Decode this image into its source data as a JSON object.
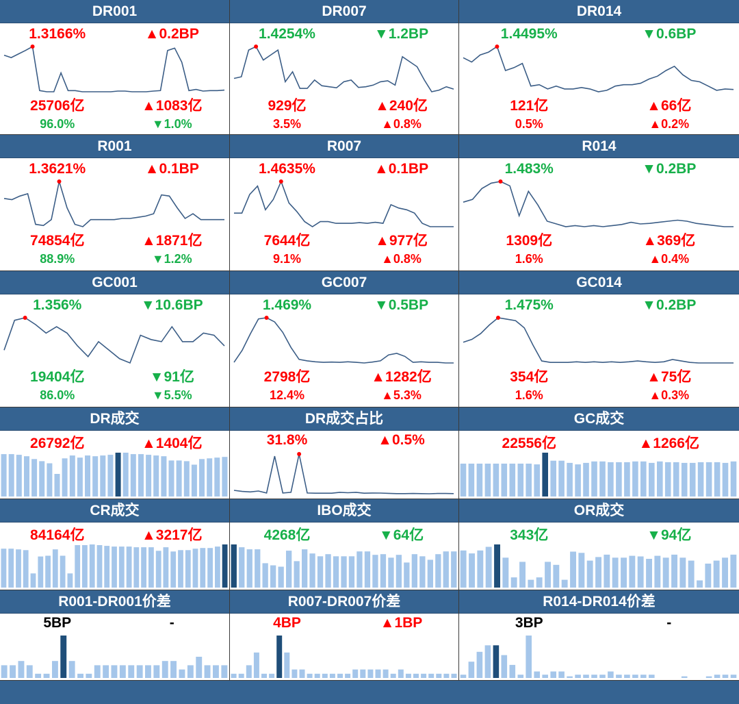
{
  "colors": {
    "header_bg": "#356391",
    "up": "#ff0000",
    "down": "#17b04a",
    "line": "#3b5d86",
    "bar": "#a5c6ea",
    "bar_hi": "#1f4e79"
  },
  "rows": [
    {
      "type": "line",
      "cells": [
        {
          "title": "DR001",
          "rate": "1.3166%",
          "rate_color": "red",
          "rate_chg": "▲0.2BP",
          "rate_chg_color": "red",
          "vol": "25706亿",
          "vol_color": "red",
          "vol_chg": "▲1083亿",
          "vol_chg_color": "red",
          "share": "96.0%",
          "share_color": "green",
          "share_chg": "▼1.0%",
          "share_chg_color": "green"
        },
        {
          "title": "DR007",
          "rate": "1.4254%",
          "rate_color": "green",
          "rate_chg": "▼1.2BP",
          "rate_chg_color": "green",
          "vol": "929亿",
          "vol_color": "red",
          "vol_chg": "▲240亿",
          "vol_chg_color": "red",
          "share": "3.5%",
          "share_color": "red",
          "share_chg": "▲0.8%",
          "share_chg_color": "red"
        },
        {
          "title": "DR014",
          "rate": "1.4495%",
          "rate_color": "green",
          "rate_chg": "▼0.6BP",
          "rate_chg_color": "green",
          "vol": "121亿",
          "vol_color": "red",
          "vol_chg": "▲66亿",
          "vol_chg_color": "red",
          "share": "0.5%",
          "share_color": "red",
          "share_chg": "▲0.2%",
          "share_chg_color": "red"
        }
      ]
    },
    {
      "type": "line",
      "cells": [
        {
          "title": "R001",
          "rate": "1.3621%",
          "rate_color": "red",
          "rate_chg": "▲0.1BP",
          "rate_chg_color": "red",
          "vol": "74854亿",
          "vol_color": "red",
          "vol_chg": "▲1871亿",
          "vol_chg_color": "red",
          "share": "88.9%",
          "share_color": "green",
          "share_chg": "▼1.2%",
          "share_chg_color": "green"
        },
        {
          "title": "R007",
          "rate": "1.4635%",
          "rate_color": "red",
          "rate_chg": "▲0.1BP",
          "rate_chg_color": "red",
          "vol": "7644亿",
          "vol_color": "red",
          "vol_chg": "▲977亿",
          "vol_chg_color": "red",
          "share": "9.1%",
          "share_color": "red",
          "share_chg": "▲0.8%",
          "share_chg_color": "red"
        },
        {
          "title": "R014",
          "rate": "1.483%",
          "rate_color": "green",
          "rate_chg": "▼0.2BP",
          "rate_chg_color": "green",
          "vol": "1309亿",
          "vol_color": "red",
          "vol_chg": "▲369亿",
          "vol_chg_color": "red",
          "share": "1.6%",
          "share_color": "red",
          "share_chg": "▲0.4%",
          "share_chg_color": "red"
        }
      ]
    },
    {
      "type": "line",
      "cells": [
        {
          "title": "GC001",
          "rate": "1.356%",
          "rate_color": "green",
          "rate_chg": "▼10.6BP",
          "rate_chg_color": "green",
          "vol": "19404亿",
          "vol_color": "green",
          "vol_chg": "▼91亿",
          "vol_chg_color": "green",
          "share": "86.0%",
          "share_color": "green",
          "share_chg": "▼5.5%",
          "share_chg_color": "green"
        },
        {
          "title": "GC007",
          "rate": "1.469%",
          "rate_color": "green",
          "rate_chg": "▼0.5BP",
          "rate_chg_color": "green",
          "vol": "2798亿",
          "vol_color": "red",
          "vol_chg": "▲1282亿",
          "vol_chg_color": "red",
          "share": "12.4%",
          "share_color": "red",
          "share_chg": "▲5.3%",
          "share_chg_color": "red"
        },
        {
          "title": "GC014",
          "rate": "1.475%",
          "rate_color": "green",
          "rate_chg": "▼0.2BP",
          "rate_chg_color": "green",
          "vol": "354亿",
          "vol_color": "red",
          "vol_chg": "▲75亿",
          "vol_chg_color": "red",
          "share": "1.6%",
          "share_color": "red",
          "share_chg": "▲0.3%",
          "share_chg_color": "red"
        }
      ]
    },
    {
      "type": "mixed",
      "cells": [
        {
          "title": "DR成交",
          "kind": "bar",
          "v1": "26792亿",
          "v1_color": "red",
          "v2": "▲1404亿",
          "v2_color": "red"
        },
        {
          "title": "DR成交占比",
          "kind": "line",
          "v1": "31.8%",
          "v1_color": "red",
          "v2": "▲0.5%",
          "v2_color": "red"
        },
        {
          "title": "GC成交",
          "kind": "bar",
          "v1": "22556亿",
          "v1_color": "red",
          "v2": "▲1266亿",
          "v2_color": "red"
        }
      ]
    },
    {
      "type": "mixed",
      "cells": [
        {
          "title": "CR成交",
          "kind": "bar",
          "v1": "84164亿",
          "v1_color": "red",
          "v2": "▲3217亿",
          "v2_color": "red"
        },
        {
          "title": "IBO成交",
          "kind": "bar",
          "v1": "4268亿",
          "v1_color": "green",
          "v2": "▼64亿",
          "v2_color": "green"
        },
        {
          "title": "OR成交",
          "kind": "bar",
          "v1": "343亿",
          "v1_color": "green",
          "v2": "▼94亿",
          "v2_color": "green"
        }
      ]
    },
    {
      "type": "mixed",
      "cells": [
        {
          "title": "R001-DR001价差",
          "kind": "bar",
          "v1": "5BP",
          "v1_color": "black",
          "v2": "-",
          "v2_color": "black"
        },
        {
          "title": "R007-DR007价差",
          "kind": "bar",
          "v1": "4BP",
          "v1_color": "red",
          "v2": "▲1BP",
          "v2_color": "red"
        },
        {
          "title": "R014-DR014价差",
          "kind": "bar",
          "v1": "3BP",
          "v1_color": "black",
          "v2": "-",
          "v2_color": "black"
        }
      ]
    }
  ],
  "chart_data": [
    {
      "type": "line",
      "title": "DR001",
      "values": [
        1.28,
        1.27,
        1.285,
        1.3,
        1.3166,
        1.13,
        1.125,
        1.125,
        1.205,
        1.13,
        1.13,
        1.125,
        1.125,
        1.125,
        1.125,
        1.125,
        1.128,
        1.128,
        1.125,
        1.125,
        1.125,
        1.128,
        1.13,
        1.3,
        1.31,
        1.25,
        1.13,
        1.135,
        1.128,
        1.13,
        1.13,
        1.132
      ],
      "highlight_index": 4
    },
    {
      "type": "line",
      "title": "DR007",
      "values": [
        1.33,
        1.335,
        1.415,
        1.4254,
        1.385,
        1.4,
        1.415,
        1.32,
        1.35,
        1.3,
        1.3,
        1.325,
        1.308,
        1.305,
        1.302,
        1.32,
        1.325,
        1.303,
        1.305,
        1.31,
        1.32,
        1.323,
        1.31,
        1.395,
        1.38,
        1.365,
        1.325,
        1.29,
        1.295,
        1.305,
        1.298
      ],
      "highlight_index": 3
    },
    {
      "type": "line",
      "title": "DR014",
      "values": [
        1.41,
        1.395,
        1.42,
        1.43,
        1.4495,
        1.365,
        1.375,
        1.39,
        1.31,
        1.315,
        1.3,
        1.31,
        1.3,
        1.3,
        1.305,
        1.3,
        1.29,
        1.295,
        1.31,
        1.315,
        1.315,
        1.32,
        1.335,
        1.345,
        1.365,
        1.38,
        1.35,
        1.33,
        1.325,
        1.31,
        1.295,
        1.3,
        1.298
      ],
      "highlight_index": 4
    },
    {
      "type": "line",
      "title": "R001",
      "values": [
        1.29,
        1.285,
        1.3,
        1.31,
        1.18,
        1.175,
        1.2,
        1.3621,
        1.25,
        1.18,
        1.17,
        1.2,
        1.2,
        1.2,
        1.2,
        1.205,
        1.205,
        1.21,
        1.215,
        1.225,
        1.305,
        1.3,
        1.25,
        1.205,
        1.225,
        1.2,
        1.2,
        1.2,
        1.2
      ],
      "highlight_index": 7
    },
    {
      "type": "line",
      "title": "R007",
      "values": [
        1.37,
        1.37,
        1.425,
        1.45,
        1.38,
        1.41,
        1.4635,
        1.4,
        1.375,
        1.345,
        1.33,
        1.345,
        1.345,
        1.34,
        1.34,
        1.34,
        1.342,
        1.34,
        1.343,
        1.34,
        1.395,
        1.385,
        1.38,
        1.37,
        1.34,
        1.33,
        1.33,
        1.33,
        1.33
      ],
      "highlight_index": 6
    },
    {
      "type": "line",
      "title": "R014",
      "values": [
        1.445,
        1.45,
        1.47,
        1.48,
        1.483,
        1.475,
        1.42,
        1.465,
        1.44,
        1.41,
        1.405,
        1.4,
        1.402,
        1.4,
        1.402,
        1.4,
        1.402,
        1.404,
        1.408,
        1.405,
        1.406,
        1.408,
        1.41,
        1.412,
        1.41,
        1.406,
        1.404,
        1.402,
        1.4,
        1.4
      ],
      "highlight_index": 4
    },
    {
      "type": "line",
      "title": "GC001",
      "values": [
        1.28,
        1.35,
        1.356,
        1.34,
        1.32,
        1.335,
        1.32,
        1.29,
        1.265,
        1.3,
        1.28,
        1.26,
        1.25,
        1.315,
        1.305,
        1.3,
        1.335,
        1.3,
        1.3,
        1.32,
        1.315,
        1.29
      ],
      "highlight_index": 2
    },
    {
      "type": "line",
      "title": "GC007",
      "values": [
        1.32,
        1.36,
        1.415,
        1.465,
        1.469,
        1.455,
        1.42,
        1.37,
        1.33,
        1.325,
        1.322,
        1.32,
        1.321,
        1.32,
        1.322,
        1.32,
        1.318,
        1.321,
        1.325,
        1.345,
        1.35,
        1.34,
        1.32,
        1.322,
        1.32,
        1.32,
        1.318,
        1.318
      ],
      "highlight_index": 4
    },
    {
      "type": "line",
      "title": "GC014",
      "values": [
        1.39,
        1.4,
        1.42,
        1.45,
        1.475,
        1.47,
        1.465,
        1.44,
        1.38,
        1.325,
        1.32,
        1.32,
        1.32,
        1.322,
        1.32,
        1.322,
        1.32,
        1.322,
        1.32,
        1.322,
        1.325,
        1.322,
        1.32,
        1.322,
        1.33,
        1.325,
        1.32,
        1.318,
        1.318,
        1.318,
        1.318,
        1.318
      ],
      "highlight_index": 4
    },
    {
      "type": "bar",
      "title": "DR成交",
      "values": [
        60,
        60,
        59,
        57,
        53,
        50,
        47,
        32,
        54,
        58,
        55,
        58,
        57,
        58,
        59,
        62,
        62,
        60,
        60,
        59,
        58,
        57,
        51,
        51,
        50,
        45,
        53,
        54,
        55,
        56
      ],
      "highlight_index": 15
    },
    {
      "type": "line",
      "title": "DR成交占比",
      "values": [
        4.0,
        3.2,
        2.8,
        3.5,
        2.0,
        30.2,
        2.0,
        2.5,
        31.8,
        2.0,
        1.8,
        1.8,
        1.8,
        2.5,
        2.2,
        2.5,
        1.8,
        2.0,
        1.9,
        1.7,
        1.5,
        1.5,
        1.6,
        1.5,
        1.4,
        1.6,
        1.6,
        1.5
      ],
      "highlight_index": 8
    },
    {
      "type": "bar",
      "title": "GC成交",
      "values": [
        45,
        45,
        45,
        45,
        45,
        45,
        45,
        45,
        45,
        44,
        60,
        49,
        49,
        46,
        44,
        46,
        48,
        48,
        47,
        47,
        47,
        48,
        48,
        46,
        48,
        47,
        47,
        46,
        46,
        47,
        47,
        47,
        46,
        48
      ],
      "highlight_index": 10
    },
    {
      "type": "bar",
      "title": "CR成交",
      "values": [
        55,
        55,
        54,
        53,
        20,
        44,
        45,
        54,
        45,
        20,
        60,
        60,
        61,
        60,
        59,
        58,
        58,
        58,
        57,
        57,
        57,
        52,
        57,
        51,
        53,
        53,
        55,
        56,
        56,
        58,
        61
      ],
      "highlight_index": 30
    },
    {
      "type": "bar",
      "title": "IBO成交",
      "values": [
        62,
        58,
        55,
        55,
        35,
        32,
        30,
        53,
        38,
        55,
        49,
        45,
        48,
        45,
        45,
        45,
        52,
        52,
        47,
        48,
        43,
        47,
        36,
        48,
        45,
        40,
        48,
        52,
        52
      ],
      "highlight_index": 0
    },
    {
      "type": "bar",
      "title": "OR成交",
      "values": [
        62,
        57,
        62,
        68,
        72,
        50,
        17,
        43,
        13,
        17,
        43,
        38,
        13,
        60,
        58,
        45,
        51,
        55,
        50,
        50,
        53,
        52,
        48,
        53,
        50,
        55,
        50,
        45,
        12,
        40,
        45,
        50,
        55
      ],
      "highlight_index": 4
    },
    {
      "type": "bar",
      "title": "R001-DR001价差",
      "values": [
        3,
        3,
        4,
        3,
        1,
        1,
        4,
        10,
        4,
        1,
        1,
        3,
        3,
        3,
        3,
        3,
        3,
        3,
        3,
        4,
        4,
        2,
        3,
        5,
        3,
        3,
        3
      ],
      "highlight_index": 7
    },
    {
      "type": "bar",
      "title": "R007-DR007价差",
      "values": [
        1,
        1,
        3,
        6,
        1,
        1,
        10,
        6,
        2,
        2,
        1,
        1,
        1,
        1,
        1,
        1,
        2,
        2,
        2,
        2,
        2,
        1,
        2,
        1,
        1,
        1,
        1,
        1,
        1,
        1
      ],
      "highlight_index": 6
    },
    {
      "type": "bar",
      "title": "R014-DR014价差",
      "values": [
        1,
        5,
        8,
        10,
        10,
        7,
        4,
        1,
        13,
        2,
        1,
        2,
        2,
        0.5,
        1,
        1,
        1,
        1,
        2,
        1,
        1,
        1,
        1,
        1,
        0,
        0,
        0,
        0.5,
        0,
        0,
        0.5,
        1,
        1,
        1
      ],
      "highlight_index": 4
    }
  ]
}
